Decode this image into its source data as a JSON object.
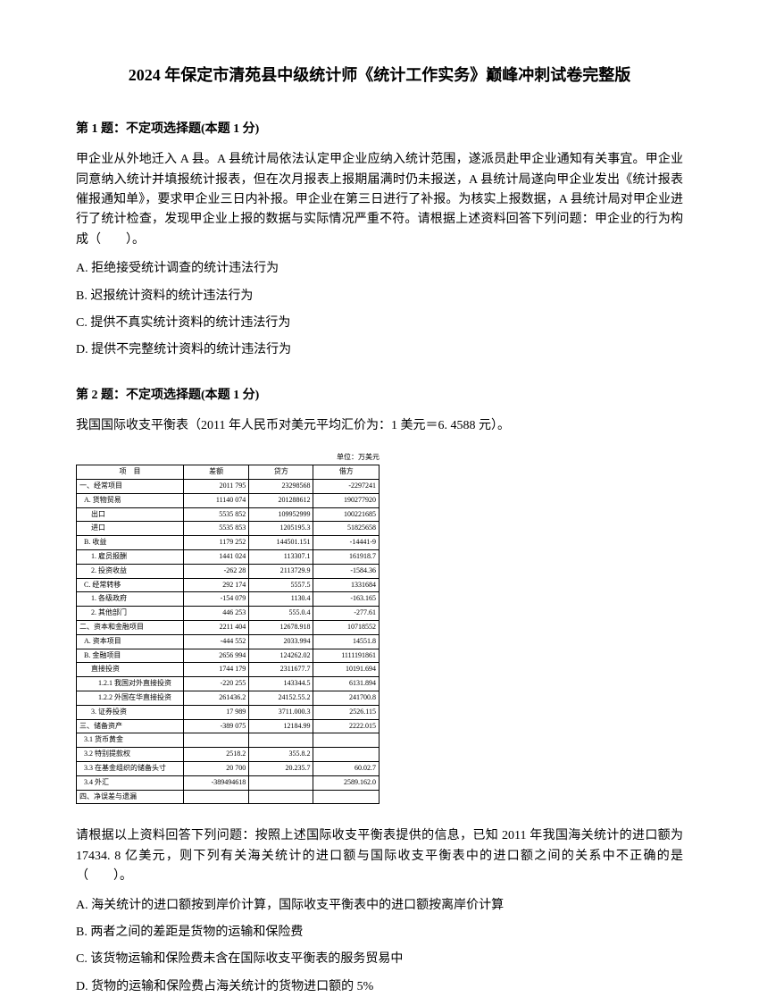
{
  "title": "2024 年保定市清苑县中级统计师《统计工作实务》巅峰冲刺试卷完整版",
  "q1": {
    "header": "第 1 题：不定项选择题(本题 1 分)",
    "body": "甲企业从外地迁入 A 县。A 县统计局依法认定甲企业应纳入统计范围，遂派员赴甲企业通知有关事宜。甲企业同意纳入统计并填报统计报表，但在次月报表上报期届满时仍未报送，A 县统计局遂向甲企业发出《统计报表催报通知单》，要求甲企业三日内补报。甲企业在第三日进行了补报。为核实上报数据，A 县统计局对甲企业进行了统计检查，发现甲企业上报的数据与实际情况严重不符。请根据上述资料回答下列问题：甲企业的行为构成（　　）。",
    "optA": "A. 拒绝接受统计调查的统计违法行为",
    "optB": "B. 迟报统计资料的统计违法行为",
    "optC": "C. 提供不真实统计资料的统计违法行为",
    "optD": "D. 提供不完整统计资料的统计违法行为"
  },
  "q2": {
    "header": "第 2 题：不定项选择题(本题 1 分)",
    "intro": "我国国际收支平衡表（2011 年人民币对美元平均汇价为：1 美元＝6. 4588 元）。",
    "body": "请根据以上资料回答下列问题：按照上述国际收支平衡表提供的信息，已知 2011 年我国海关统计的进口额为17434. 8 亿美元，则下列有关海关统计的进口额与国际收支平衡表中的进口额之间的关系中不正确的是（　　）。",
    "optA": "A. 海关统计的进口额按到岸价计算，国际收支平衡表中的进口额按离岸价计算",
    "optB": "B. 两者之间的差距是货物的运输和保险费",
    "optC": "C. 该货物运输和保险费未含在国际收支平衡表的服务贸易中",
    "optD": "D. 货物的运输和保险费占海关统计的货物进口额的 5%"
  },
  "table": {
    "unit": "单位：万美元",
    "headers": [
      "项　目",
      "差额",
      "贷方",
      "借方"
    ],
    "rows": [
      {
        "label": "一、经常项目",
        "c1": "2011 795",
        "c2": "23298568",
        "c3": "-2297241",
        "indent": 0
      },
      {
        "label": "A. 货物贸易",
        "c1": "11140 074",
        "c2": "201288612",
        "c3": "190277920",
        "indent": 1
      },
      {
        "label": "出口",
        "c1": "5535 852",
        "c2": "109952999",
        "c3": "100221685",
        "indent": 2
      },
      {
        "label": "进口",
        "c1": "5535 853",
        "c2": "1205195.3",
        "c3": "51825658",
        "indent": 2
      },
      {
        "label": "B. 收益",
        "c1": "1179 252",
        "c2": "144501.151",
        "c3": "-14441-9",
        "indent": 1
      },
      {
        "label": "1. 雇员报酬",
        "c1": "1441 024",
        "c2": "113307.1",
        "c3": "161918.7",
        "indent": 2
      },
      {
        "label": "2. 投资收益",
        "c1": "-262 28",
        "c2": "2113729.9",
        "c3": "-1584.36",
        "indent": 2
      },
      {
        "label": "C. 经常转移",
        "c1": "292 174",
        "c2": "5557.5",
        "c3": "1331684",
        "indent": 1
      },
      {
        "label": "1. 各级政府",
        "c1": "-154 079",
        "c2": "1130.4",
        "c3": "-163.165",
        "indent": 2
      },
      {
        "label": "2. 其他部门",
        "c1": "446 253",
        "c2": "555.0.4",
        "c3": "-277.61",
        "indent": 2
      },
      {
        "label": "二、资本和金融项目",
        "c1": "2211 404",
        "c2": "12678.918",
        "c3": "10718552",
        "indent": 0
      },
      {
        "label": "A. 资本项目",
        "c1": "-444 552",
        "c2": "2033.994",
        "c3": "14551.8",
        "indent": 1
      },
      {
        "label": "B. 金融项目",
        "c1": "2656 994",
        "c2": "124262.02",
        "c3": "1111191861",
        "indent": 1
      },
      {
        "label": "直接投资",
        "c1": "1744 179",
        "c2": "2311677.7",
        "c3": "10191.694",
        "indent": 2
      },
      {
        "label": "1.2.1 我国对外直接投资",
        "c1": "-220 255",
        "c2": "143344.5",
        "c3": "6131.894",
        "indent": 3
      },
      {
        "label": "1.2.2 外国在华直接投资",
        "c1": "261436.2",
        "c2": "24152.55.2",
        "c3": "241700.8",
        "indent": 3
      },
      {
        "label": "3. 证券投资",
        "c1": "17 989",
        "c2": "3711.000.3",
        "c3": "2526.115",
        "indent": 2
      },
      {
        "label": "三、储备资产",
        "c1": "-389 075",
        "c2": "12184.99",
        "c3": "2222.015",
        "indent": 0
      },
      {
        "label": "3.1 货币黄金",
        "c1": "",
        "c2": "",
        "c3": "",
        "indent": 1
      },
      {
        "label": "3.2 特别提款权",
        "c1": "2518.2",
        "c2": "355.8.2",
        "c3": "",
        "indent": 1
      },
      {
        "label": "3.3 在基金组织的储备头寸",
        "c1": "20 700",
        "c2": "20.235.7",
        "c3": "60.02.7",
        "indent": 1
      },
      {
        "label": "3.4 外汇",
        "c1": "-389494618",
        "c2": "",
        "c3": "2589.162.0",
        "indent": 1
      },
      {
        "label": "四、净误差与遗漏",
        "c1": "",
        "c2": "",
        "c3": "",
        "indent": 0
      }
    ]
  }
}
